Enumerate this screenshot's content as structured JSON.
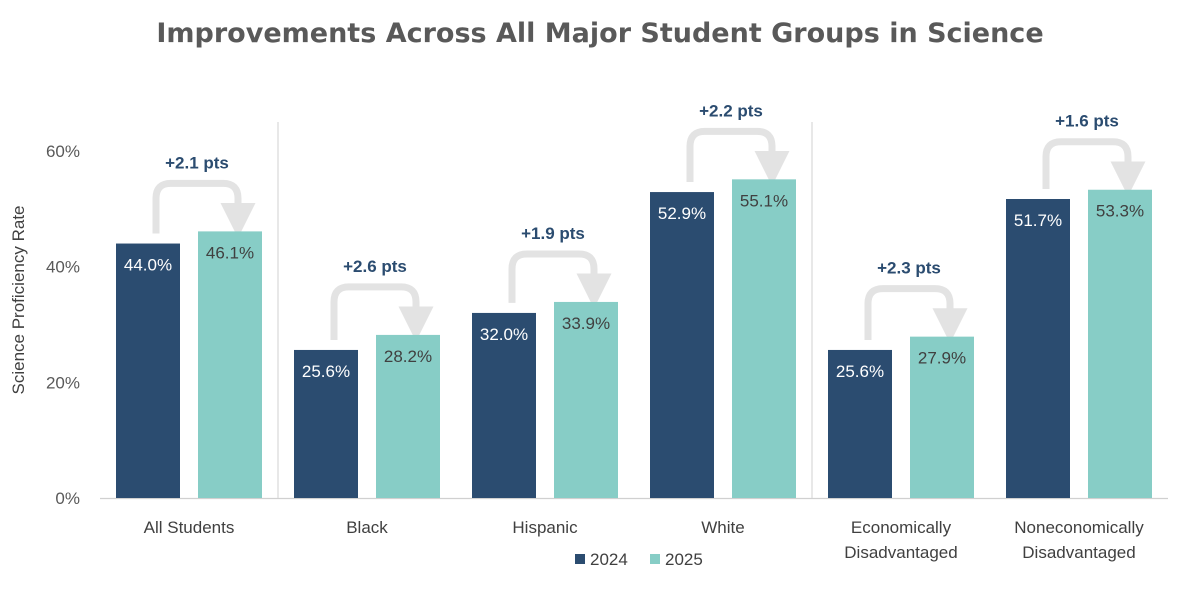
{
  "chart_data": {
    "type": "bar",
    "title": "Improvements Across All Major Student Groups in Science",
    "ylabel": "Science Proficiency Rate",
    "xlabel": "",
    "ylim": [
      0,
      60
    ],
    "yticks": [
      0,
      20,
      40,
      60
    ],
    "ytick_labels": [
      "0%",
      "20%",
      "40%",
      "60%"
    ],
    "categories": [
      [
        "All Students"
      ],
      [
        "Black"
      ],
      [
        "Hispanic"
      ],
      [
        "White"
      ],
      [
        "Economically",
        "Disadvantaged"
      ],
      [
        "Noneconomically",
        "Disadvantaged"
      ]
    ],
    "series": [
      {
        "name": "2024",
        "color": "#2b4c70",
        "values": [
          44.0,
          25.6,
          32.0,
          52.9,
          25.6,
          51.7
        ],
        "labels": [
          "44.0%",
          "25.6%",
          "32.0%",
          "52.9%",
          "25.6%",
          "51.7%"
        ]
      },
      {
        "name": "2025",
        "color": "#87cdc6",
        "values": [
          46.1,
          28.2,
          33.9,
          55.1,
          27.9,
          53.3
        ],
        "labels": [
          "46.1%",
          "28.2%",
          "33.9%",
          "55.1%",
          "27.9%",
          "53.3%"
        ]
      }
    ],
    "annotations": [
      "+2.1 pts",
      "+2.6 pts",
      "+1.9 pts",
      "+2.2 pts",
      "+2.3 pts",
      "+1.6 pts"
    ],
    "legend": {
      "position": "bottom",
      "entries": [
        "2024",
        "2025"
      ]
    },
    "grid": false
  }
}
